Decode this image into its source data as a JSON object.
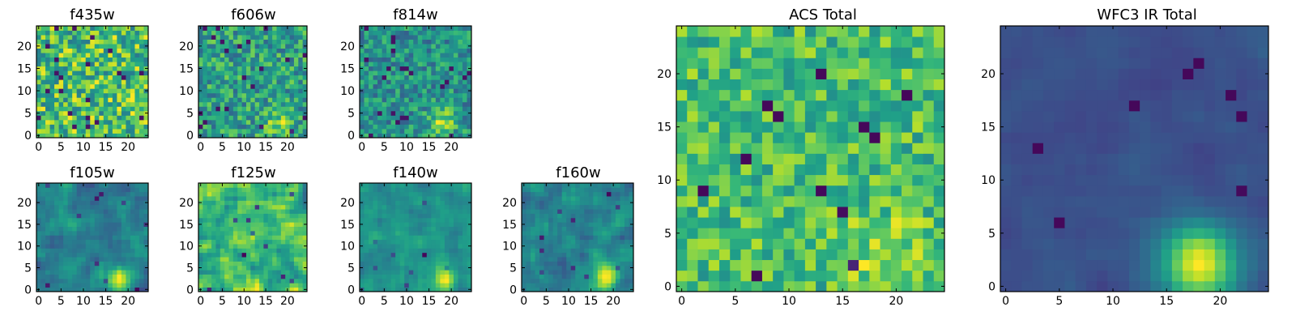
{
  "chart_data": [
    {
      "type": "heatmap",
      "title": "f435w",
      "colormap": "viridis",
      "grid_size": 25,
      "xlim": [
        0,
        25
      ],
      "ylim": [
        0,
        25
      ],
      "xticks": [
        0,
        5,
        10,
        15,
        20
      ],
      "yticks": [
        0,
        5,
        10,
        15,
        20
      ],
      "xlabel": "",
      "ylabel": "",
      "character": "uniform noise",
      "seed": 11
    },
    {
      "type": "heatmap",
      "title": "f606w",
      "colormap": "viridis",
      "grid_size": 25,
      "xlim": [
        0,
        25
      ],
      "ylim": [
        0,
        25
      ],
      "xticks": [
        0,
        5,
        10,
        15,
        20
      ],
      "yticks": [
        0,
        5,
        10,
        15,
        20
      ],
      "xlabel": "",
      "ylabel": "",
      "character": "noise with faint source near (18,3)",
      "seed": 23
    },
    {
      "type": "heatmap",
      "title": "f814w",
      "colormap": "viridis",
      "grid_size": 25,
      "xlim": [
        0,
        25
      ],
      "ylim": [
        0,
        25
      ],
      "xticks": [
        0,
        5,
        10,
        15,
        20
      ],
      "yticks": [
        0,
        5,
        10,
        15,
        20
      ],
      "xlabel": "",
      "ylabel": "",
      "character": "noise with source near (18,3)",
      "seed": 37
    },
    {
      "type": "heatmap",
      "title": "f105w",
      "colormap": "viridis",
      "grid_size": 25,
      "xlim": [
        0,
        25
      ],
      "ylim": [
        0,
        25
      ],
      "xticks": [
        0,
        5,
        10,
        15,
        20
      ],
      "yticks": [
        0,
        5,
        10,
        15,
        20
      ],
      "xlabel": "",
      "ylabel": "",
      "character": "smoothed noise with bright source near (17,3)",
      "seed": 41
    },
    {
      "type": "heatmap",
      "title": "f125w",
      "colormap": "viridis",
      "grid_size": 25,
      "xlim": [
        0,
        25
      ],
      "ylim": [
        0,
        25
      ],
      "xticks": [
        0,
        5,
        10,
        15,
        20
      ],
      "yticks": [
        0,
        5,
        10,
        15,
        20
      ],
      "xlabel": "",
      "ylabel": "",
      "character": "smoothed noise",
      "seed": 53
    },
    {
      "type": "heatmap",
      "title": "f140w",
      "colormap": "viridis",
      "grid_size": 25,
      "xlim": [
        0,
        25
      ],
      "ylim": [
        0,
        25
      ],
      "xticks": [
        0,
        5,
        10,
        15,
        20
      ],
      "yticks": [
        0,
        5,
        10,
        15,
        20
      ],
      "xlabel": "",
      "ylabel": "",
      "character": "smoothed noise with source near (18,3)",
      "seed": 67
    },
    {
      "type": "heatmap",
      "title": "f160w",
      "colormap": "viridis",
      "grid_size": 25,
      "xlim": [
        0,
        25
      ],
      "ylim": [
        0,
        25
      ],
      "xticks": [
        0,
        5,
        10,
        15,
        20
      ],
      "yticks": [
        0,
        5,
        10,
        15,
        20
      ],
      "xlabel": "",
      "ylabel": "",
      "character": "smoothed noise with source near (18,2)",
      "seed": 79
    },
    {
      "type": "heatmap",
      "title": "ACS Total",
      "colormap": "viridis",
      "grid_size": 25,
      "xlim": [
        0,
        25
      ],
      "ylim": [
        0,
        25
      ],
      "xticks": [
        0,
        5,
        10,
        15,
        20
      ],
      "yticks": [
        0,
        5,
        10,
        15,
        20
      ],
      "xlabel": "",
      "ylabel": "",
      "character": "mostly bright noise with a few dark pixels",
      "seed": 97
    },
    {
      "type": "heatmap",
      "title": "WFC3 IR Total",
      "colormap": "viridis",
      "grid_size": 25,
      "xlim": [
        0,
        25
      ],
      "ylim": [
        0,
        25
      ],
      "xticks": [
        0,
        5,
        10,
        15,
        20
      ],
      "yticks": [
        0,
        5,
        10,
        15,
        20
      ],
      "xlabel": "",
      "ylabel": "",
      "character": "dark smoothed background with bright source centered near (18,2)",
      "seed": 101
    }
  ]
}
